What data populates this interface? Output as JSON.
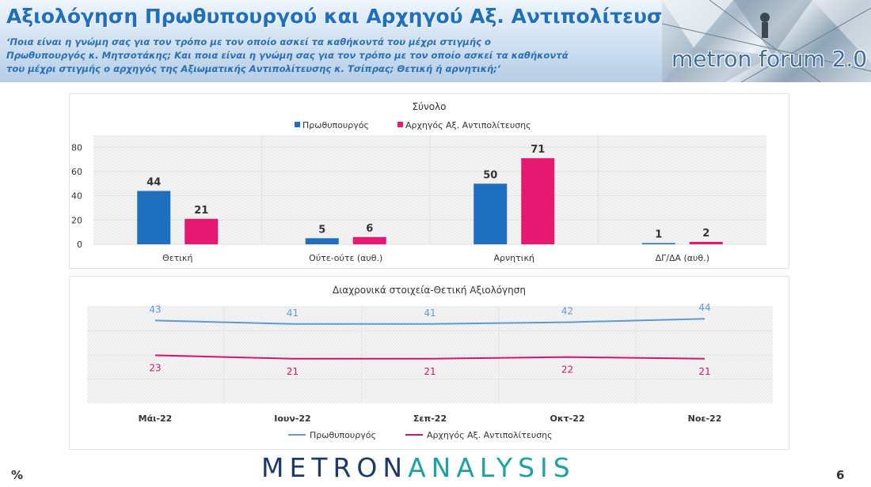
{
  "header": {
    "title": "Αξιολόγηση Πρωθυπουργού και Αρχηγού Αξ. Αντιπολίτευσης",
    "question_line1": "‘Ποια είναι η γνώμη σας για τον τρόπο με τον οποίο ασκεί τα καθήκοντά του μέχρι στιγμής ο",
    "question_line2": "Πρωθυπουργός κ. Μητσοτάκης; Και ποια είναι η γνώμη σας για τον τρόπο με τον οποίο ασκεί τα καθήκοντά",
    "question_line3": "του μέχρι στιγμής ο αρχηγός της Αξιωματικής Αντιπολίτευσης κ. Τσίπρας; Θετική ή αρνητική;’",
    "brand": "metron forum 2.0"
  },
  "footer": {
    "logo_part1": "METRON",
    "logo_part2": "ANALYSIS",
    "unit": "%",
    "page_number": "6"
  },
  "colors": {
    "pm": "#1f6fc1",
    "opp": "#e6186f",
    "line_pm": "#5b9bd5",
    "line_opp": "#d4146c"
  },
  "chart_data": [
    {
      "type": "bar",
      "title": "Σύνολο",
      "categories": [
        "Θετική",
        "Ούτε-ούτε (αυθ.)",
        "Αρνητική",
        "ΔΓ/ΔΑ (αυθ.)"
      ],
      "series": [
        {
          "name": "Πρωθυπουργός",
          "values": [
            44,
            5,
            50,
            1
          ]
        },
        {
          "name": "Αρχηγός Αξ. Αντιπολίτευσης",
          "values": [
            21,
            6,
            71,
            2
          ]
        }
      ],
      "yticks": [
        0,
        20,
        40,
        60,
        80
      ],
      "ylim": [
        0,
        90
      ],
      "legend": "top",
      "grid": true
    },
    {
      "type": "line",
      "title": "Διαχρονικά στοιχεία-Θετική Αξιολόγηση",
      "categories": [
        "Μάι-22",
        "Ιουν-22",
        "Σεπ-22",
        "Οκτ-22",
        "Νοε-22"
      ],
      "series": [
        {
          "name": "Πρωθυπουργός",
          "values": [
            43,
            41,
            41,
            42,
            44
          ]
        },
        {
          "name": "Αρχηγός Αξ. Αντιπολίτευσης",
          "values": [
            23,
            21,
            21,
            22,
            21
          ]
        }
      ],
      "legend": "bottom",
      "grid": true
    }
  ]
}
